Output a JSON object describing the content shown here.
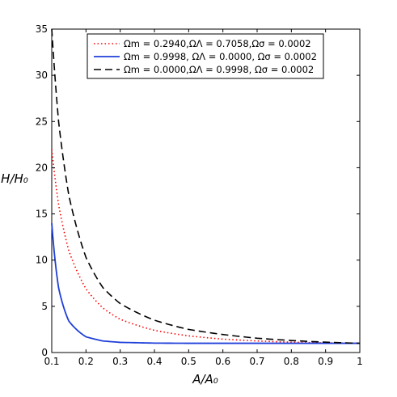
{
  "chart_data": {
    "type": "line",
    "xlabel": "A/A₀",
    "ylabel": "H/H₀",
    "xlim": [
      0.1,
      1.0
    ],
    "ylim": [
      0,
      35
    ],
    "x_ticks": [
      0.1,
      0.2,
      0.3,
      0.4,
      0.5,
      0.6,
      0.7,
      0.8,
      0.9,
      1.0
    ],
    "x_tick_labels": [
      "0.1",
      "0.2",
      "0.3",
      "0.4",
      "0.5",
      "0.6",
      "0.7",
      "0.8",
      "0.9",
      "1"
    ],
    "y_ticks": [
      0,
      5,
      10,
      15,
      20,
      25,
      30,
      35
    ],
    "y_tick_labels": [
      "0",
      "5",
      "10",
      "15",
      "20",
      "25",
      "30",
      "35"
    ],
    "grid": false,
    "legend_position": "top-right",
    "series": [
      {
        "name": "Ωm = 0.2940,ΩΛ = 0.7058,Ωσ = 0.0002",
        "color": "#ff0000",
        "style": "dotted",
        "x": [
          0.1,
          0.12,
          0.15,
          0.2,
          0.25,
          0.3,
          0.4,
          0.5,
          0.6,
          0.7,
          0.8,
          0.9,
          1.0
        ],
        "y": [
          22.0,
          16.0,
          11.0,
          6.9,
          4.8,
          3.6,
          2.4,
          1.8,
          1.45,
          1.25,
          1.12,
          1.05,
          1.0
        ]
      },
      {
        "name": "Ωm = 0.9998, ΩΛ = 0.0000, Ωσ = 0.0002",
        "color": "#1f3fd8",
        "style": "solid",
        "x": [
          0.1,
          0.12,
          0.15,
          0.2,
          0.25,
          0.3,
          0.4,
          0.5,
          0.6,
          0.7,
          0.8,
          0.9,
          1.0
        ],
        "y": [
          14.0,
          7.0,
          3.4,
          1.7,
          1.25,
          1.1,
          1.02,
          1.0,
          1.0,
          1.0,
          1.0,
          1.0,
          1.0
        ]
      },
      {
        "name": "Ωm = 0.0000,ΩΛ = 0.9998, Ωσ = 0.0002",
        "color": "#000000",
        "style": "dashed",
        "x": [
          0.1,
          0.12,
          0.15,
          0.2,
          0.25,
          0.3,
          0.4,
          0.5,
          0.6,
          0.7,
          0.8,
          0.9,
          1.0
        ],
        "y": [
          35.0,
          25.0,
          17.0,
          10.3,
          7.0,
          5.3,
          3.5,
          2.5,
          1.95,
          1.55,
          1.3,
          1.12,
          1.0
        ]
      }
    ]
  }
}
